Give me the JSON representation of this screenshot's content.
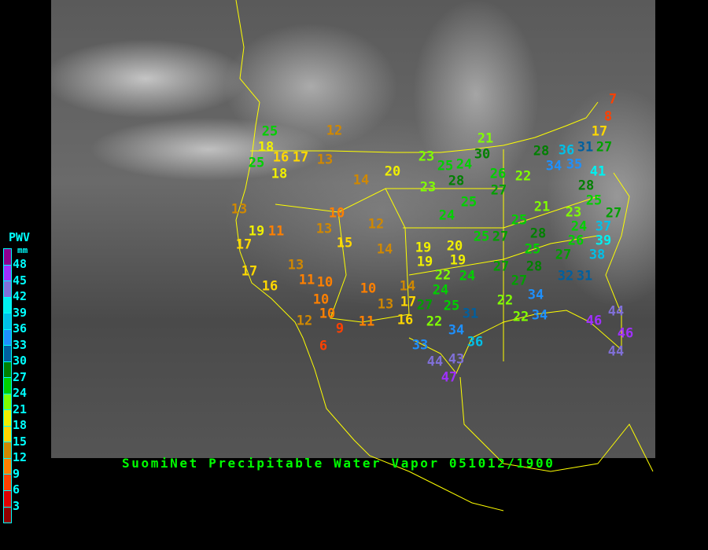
{
  "title": "SuomiNet Precipitable Water Vapor 051012/1900",
  "legend": {
    "title": "PWV",
    "unit": "mm",
    "labels": [
      "48",
      "45",
      "42",
      "39",
      "36",
      "33",
      "30",
      "27",
      "24",
      "21",
      "18",
      "15",
      "12",
      "9",
      "6",
      "3"
    ],
    "colors_top_to_bottom": [
      "#900090",
      "#a030ff",
      "#8070d8",
      "#00f0f0",
      "#00c0e8",
      "#1e90ff",
      "#005f9f",
      "#008000",
      "#00d000",
      "#80ff00",
      "#f0f000",
      "#ffd700",
      "#d08800",
      "#ff8000",
      "#ff4000",
      "#e00000",
      "#900000"
    ]
  },
  "station_colors": {
    "6": "#ff4000",
    "7": "#ff4000",
    "8": "#ff4000",
    "9": "#ff4000",
    "10": "#ff8000",
    "11": "#ff8000",
    "12": "#d08800",
    "13": "#d08800",
    "14": "#d08800",
    "15": "#ffd700",
    "16": "#ffd700",
    "17": "#ffd700",
    "18": "#f0f000",
    "19": "#f0f000",
    "20": "#f0f000",
    "21": "#80ff00",
    "22": "#80ff00",
    "23": "#80ff00",
    "24": "#00d000",
    "25": "#00d000",
    "26": "#00d000",
    "27": "#00a000",
    "28": "#008000",
    "30": "#008000",
    "31": "#005f9f",
    "32": "#005f9f",
    "33": "#1e90ff",
    "34": "#1e90ff",
    "35": "#1e90ff",
    "36": "#00c0e8",
    "37": "#00c0e8",
    "38": "#00c0e8",
    "39": "#00f0f0",
    "41": "#00f0f0",
    "43": "#8070d8",
    "44": "#8070d8",
    "46": "#a030ff",
    "47": "#a030ff"
  },
  "stations": [
    "12",
    "25",
    "18",
    "25",
    "16",
    "17",
    "13",
    "18",
    "14",
    "20",
    "13",
    "10",
    "13",
    "15",
    "12",
    "14",
    "19",
    "11",
    "17",
    "23",
    "21",
    "30",
    "25",
    "24",
    "28",
    "23",
    "26",
    "22",
    "27",
    "28",
    "36",
    "31",
    "27",
    "17",
    "35",
    "34",
    "41",
    "28",
    "25",
    "23",
    "24",
    "27",
    "21",
    "25",
    "24",
    "25",
    "28",
    "25",
    "27",
    "26",
    "37",
    "39",
    "38",
    "27",
    "25",
    "19",
    "20",
    "19",
    "19",
    "22",
    "24",
    "24",
    "27",
    "27",
    "28",
    "32",
    "31",
    "34",
    "27",
    "25",
    "31",
    "22",
    "22",
    "22",
    "34",
    "34",
    "36",
    "33",
    "44",
    "43",
    "47",
    "46",
    "44",
    "46",
    "44",
    "17",
    "16",
    "13",
    "11",
    "10",
    "10",
    "10",
    "12",
    "9",
    "11",
    "10",
    "13",
    "14",
    "17",
    "16",
    "6",
    "7",
    "8"
  ]
}
